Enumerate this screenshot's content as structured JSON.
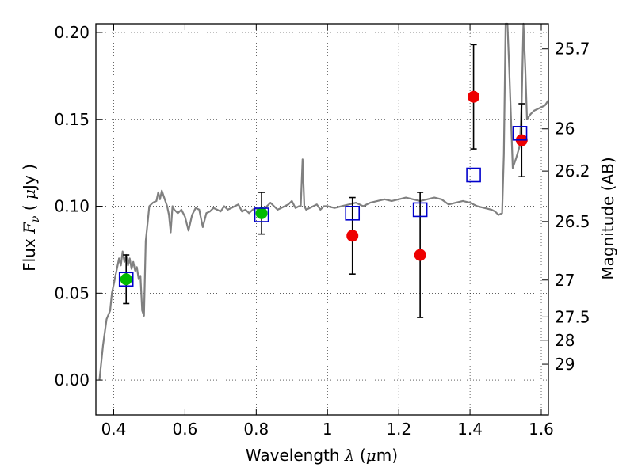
{
  "chart_data": {
    "type": "scatter",
    "xlabel_pre": "Wavelength",
    "xlabel_math": "λ",
    "xlabel_unit_open": " (",
    "xlabel_unit_mu": "μ",
    "xlabel_unit_close": "m)",
    "ylabel_pre": "Flux",
    "ylabel_math": "F",
    "ylabel_sub": "ν",
    "ylabel_open": " ( ",
    "ylabel_mu": "μ",
    "ylabel_close": "Jy )",
    "y2label": "Magnitude (AB)",
    "xlim": [
      0.35,
      1.62
    ],
    "ylim": [
      -0.02,
      0.205
    ],
    "grid": true,
    "x_ticks": [
      0.4,
      0.6,
      0.8,
      1.0,
      1.2,
      1.4,
      1.6
    ],
    "x_tick_labels": [
      "0.4",
      "0.6",
      "0.8",
      "1",
      "1.2",
      "1.4",
      "1.6"
    ],
    "y_ticks": [
      0.0,
      0.05,
      0.1,
      0.15,
      0.2
    ],
    "y_tick_labels": [
      "0.00",
      "0.05",
      "0.10",
      "0.15",
      "0.20"
    ],
    "y2_ticks": [
      {
        "label": "25.7",
        "flux": 0.19055
      },
      {
        "label": "26",
        "flux": 0.14454
      },
      {
        "label": "26.2",
        "flux": 0.12023
      },
      {
        "label": "26.5",
        "flux": 0.0912
      },
      {
        "label": "27",
        "flux": 0.05754
      },
      {
        "label": "27.5",
        "flux": 0.03631
      },
      {
        "label": "28",
        "flux": 0.02291
      },
      {
        "label": "29",
        "flux": 0.00912
      }
    ],
    "model_spectrum": {
      "color": "#808080",
      "x": [
        0.36,
        0.37,
        0.38,
        0.39,
        0.395,
        0.4,
        0.405,
        0.41,
        0.415,
        0.42,
        0.425,
        0.43,
        0.435,
        0.44,
        0.445,
        0.45,
        0.455,
        0.46,
        0.465,
        0.47,
        0.475,
        0.48,
        0.485,
        0.49,
        0.495,
        0.5,
        0.51,
        0.52,
        0.525,
        0.53,
        0.535,
        0.54,
        0.55,
        0.555,
        0.56,
        0.565,
        0.57,
        0.58,
        0.59,
        0.6,
        0.61,
        0.62,
        0.63,
        0.64,
        0.645,
        0.65,
        0.66,
        0.67,
        0.68,
        0.69,
        0.7,
        0.71,
        0.72,
        0.73,
        0.74,
        0.75,
        0.76,
        0.77,
        0.78,
        0.79,
        0.8,
        0.81,
        0.82,
        0.83,
        0.84,
        0.85,
        0.86,
        0.87,
        0.88,
        0.89,
        0.9,
        0.91,
        0.92,
        0.925,
        0.93,
        0.935,
        0.94,
        0.95,
        0.96,
        0.97,
        0.98,
        0.99,
        1.0,
        1.02,
        1.04,
        1.06,
        1.08,
        1.1,
        1.12,
        1.14,
        1.16,
        1.18,
        1.2,
        1.22,
        1.24,
        1.26,
        1.28,
        1.3,
        1.32,
        1.34,
        1.36,
        1.38,
        1.4,
        1.42,
        1.44,
        1.46,
        1.47,
        1.48,
        1.49,
        1.495,
        1.5,
        1.505,
        1.51,
        1.52,
        1.53,
        1.54,
        1.545,
        1.55,
        1.555,
        1.56,
        1.57,
        1.58,
        1.59,
        1.6,
        1.61,
        1.62
      ],
      "y": [
        0.0,
        0.02,
        0.035,
        0.04,
        0.05,
        0.055,
        0.06,
        0.065,
        0.07,
        0.066,
        0.074,
        0.068,
        0.072,
        0.066,
        0.07,
        0.064,
        0.068,
        0.063,
        0.065,
        0.058,
        0.06,
        0.04,
        0.037,
        0.08,
        0.09,
        0.1,
        0.102,
        0.103,
        0.108,
        0.104,
        0.109,
        0.106,
        0.1,
        0.095,
        0.085,
        0.1,
        0.098,
        0.096,
        0.098,
        0.094,
        0.086,
        0.095,
        0.099,
        0.098,
        0.093,
        0.088,
        0.096,
        0.097,
        0.099,
        0.098,
        0.097,
        0.1,
        0.098,
        0.099,
        0.1,
        0.101,
        0.097,
        0.098,
        0.096,
        0.098,
        0.099,
        0.096,
        0.097,
        0.1,
        0.102,
        0.1,
        0.098,
        0.099,
        0.1,
        0.101,
        0.103,
        0.099,
        0.1,
        0.1,
        0.127,
        0.1,
        0.098,
        0.099,
        0.1,
        0.101,
        0.098,
        0.1,
        0.1,
        0.099,
        0.1,
        0.101,
        0.102,
        0.1,
        0.102,
        0.103,
        0.104,
        0.103,
        0.104,
        0.105,
        0.104,
        0.103,
        0.104,
        0.105,
        0.104,
        0.101,
        0.102,
        0.103,
        0.102,
        0.1,
        0.099,
        0.098,
        0.097,
        0.095,
        0.096,
        0.13,
        0.205,
        0.205,
        0.18,
        0.122,
        0.128,
        0.135,
        0.16,
        0.205,
        0.18,
        0.15,
        0.153,
        0.155,
        0.156,
        0.157,
        0.158,
        0.161
      ]
    },
    "series": [
      {
        "marker": "circle",
        "color": "#00bb00",
        "x": [
          0.435,
          0.815
        ],
        "y": [
          0.058,
          0.096
        ],
        "yerr": [
          0.014,
          0.012
        ]
      },
      {
        "marker": "circle",
        "color": "#ee0000",
        "x": [
          1.07,
          1.26,
          1.41,
          1.545
        ],
        "y": [
          0.083,
          0.072,
          0.163,
          0.138
        ],
        "yerr": [
          0.022,
          0.036,
          0.03,
          0.021
        ]
      },
      {
        "marker": "open-square",
        "color": "#0000cc",
        "x": [
          0.435,
          0.815,
          1.07,
          1.26,
          1.41,
          1.54
        ],
        "y": [
          0.058,
          0.095,
          0.096,
          0.098,
          0.118,
          0.142
        ]
      }
    ]
  }
}
